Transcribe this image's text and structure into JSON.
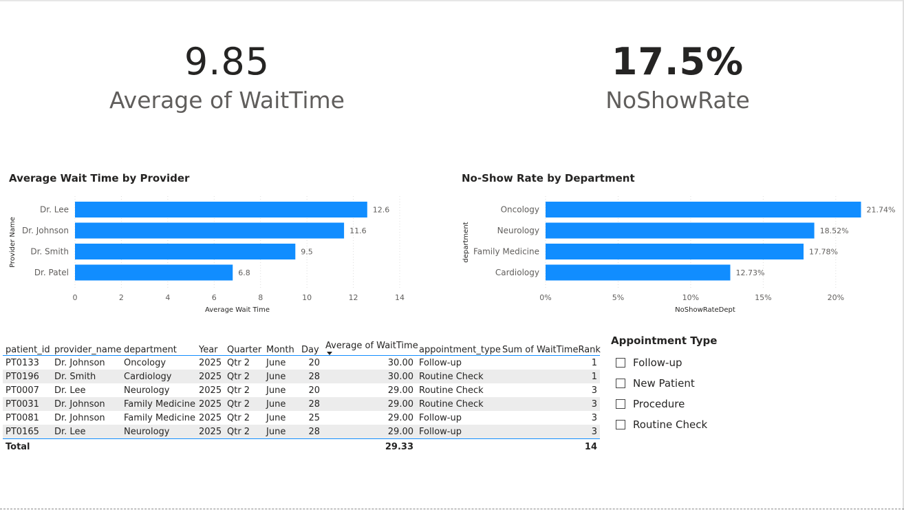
{
  "cards": [
    {
      "value": "9.85",
      "label": "Average of WaitTime"
    },
    {
      "value": "17.5%",
      "label": "NoShowRate"
    }
  ],
  "chart_data": [
    {
      "type": "bar",
      "orientation": "horizontal",
      "title": "Average Wait Time by Provider",
      "ylabel": "Provider Name",
      "xlabel": "Average Wait Time",
      "categories": [
        "Dr. Lee",
        "Dr. Johnson",
        "Dr. Smith",
        "Dr. Patel"
      ],
      "values": [
        12.6,
        11.6,
        9.5,
        6.8
      ],
      "data_labels": [
        "12.6",
        "11.6",
        "9.5",
        "6.8"
      ],
      "xlim": [
        0,
        14
      ],
      "ticks": [
        0,
        2,
        4,
        6,
        8,
        10,
        12,
        14
      ],
      "tick_labels": [
        "0",
        "2",
        "4",
        "6",
        "8",
        "10",
        "12",
        "14"
      ],
      "bar_color": "#118DFF",
      "grid": true
    },
    {
      "type": "bar",
      "orientation": "horizontal",
      "title": "No-Show Rate by Department",
      "ylabel": "department",
      "xlabel": "NoShowRateDept",
      "categories": [
        "Oncology",
        "Neurology",
        "Family Medicine",
        "Cardiology"
      ],
      "values": [
        21.74,
        18.52,
        17.78,
        12.73
      ],
      "data_labels": [
        "21.74%",
        "18.52%",
        "17.78%",
        "12.73%"
      ],
      "xlim": [
        0,
        22
      ],
      "ticks": [
        0,
        5,
        10,
        15,
        20
      ],
      "tick_labels": [
        "0%",
        "5%",
        "10%",
        "15%",
        "20%"
      ],
      "bar_color": "#118DFF",
      "grid": true
    }
  ],
  "table": {
    "columns": [
      "patient_id",
      "provider_name",
      "department",
      "Year",
      "Quarter",
      "Month",
      "Day",
      "Average of WaitTime",
      "appointment_type",
      "Sum of WaitTimeRank"
    ],
    "sorted_column": "Average of WaitTime",
    "rows": [
      [
        "PT0133",
        "Dr. Johnson",
        "Oncology",
        "2025",
        "Qtr 2",
        "June",
        "20",
        "30.00",
        "Follow-up",
        "1"
      ],
      [
        "PT0196",
        "Dr. Smith",
        "Cardiology",
        "2025",
        "Qtr 2",
        "June",
        "28",
        "30.00",
        "Routine Check",
        "1"
      ],
      [
        "PT0007",
        "Dr. Lee",
        "Neurology",
        "2025",
        "Qtr 2",
        "June",
        "20",
        "29.00",
        "Routine Check",
        "3"
      ],
      [
        "PT0031",
        "Dr. Johnson",
        "Family Medicine",
        "2025",
        "Qtr 2",
        "June",
        "28",
        "29.00",
        "Routine Check",
        "3"
      ],
      [
        "PT0081",
        "Dr. Johnson",
        "Family Medicine",
        "2025",
        "Qtr 2",
        "June",
        "25",
        "29.00",
        "Follow-up",
        "3"
      ],
      [
        "PT0165",
        "Dr. Lee",
        "Neurology",
        "2025",
        "Qtr 2",
        "June",
        "28",
        "29.00",
        "Follow-up",
        "3"
      ]
    ],
    "total": {
      "label": "Total",
      "avg_wait": "29.33",
      "sum_rank": "14"
    }
  },
  "slicer": {
    "title": "Appointment Type",
    "options": [
      "Follow-up",
      "New Patient",
      "Procedure",
      "Routine Check"
    ]
  }
}
